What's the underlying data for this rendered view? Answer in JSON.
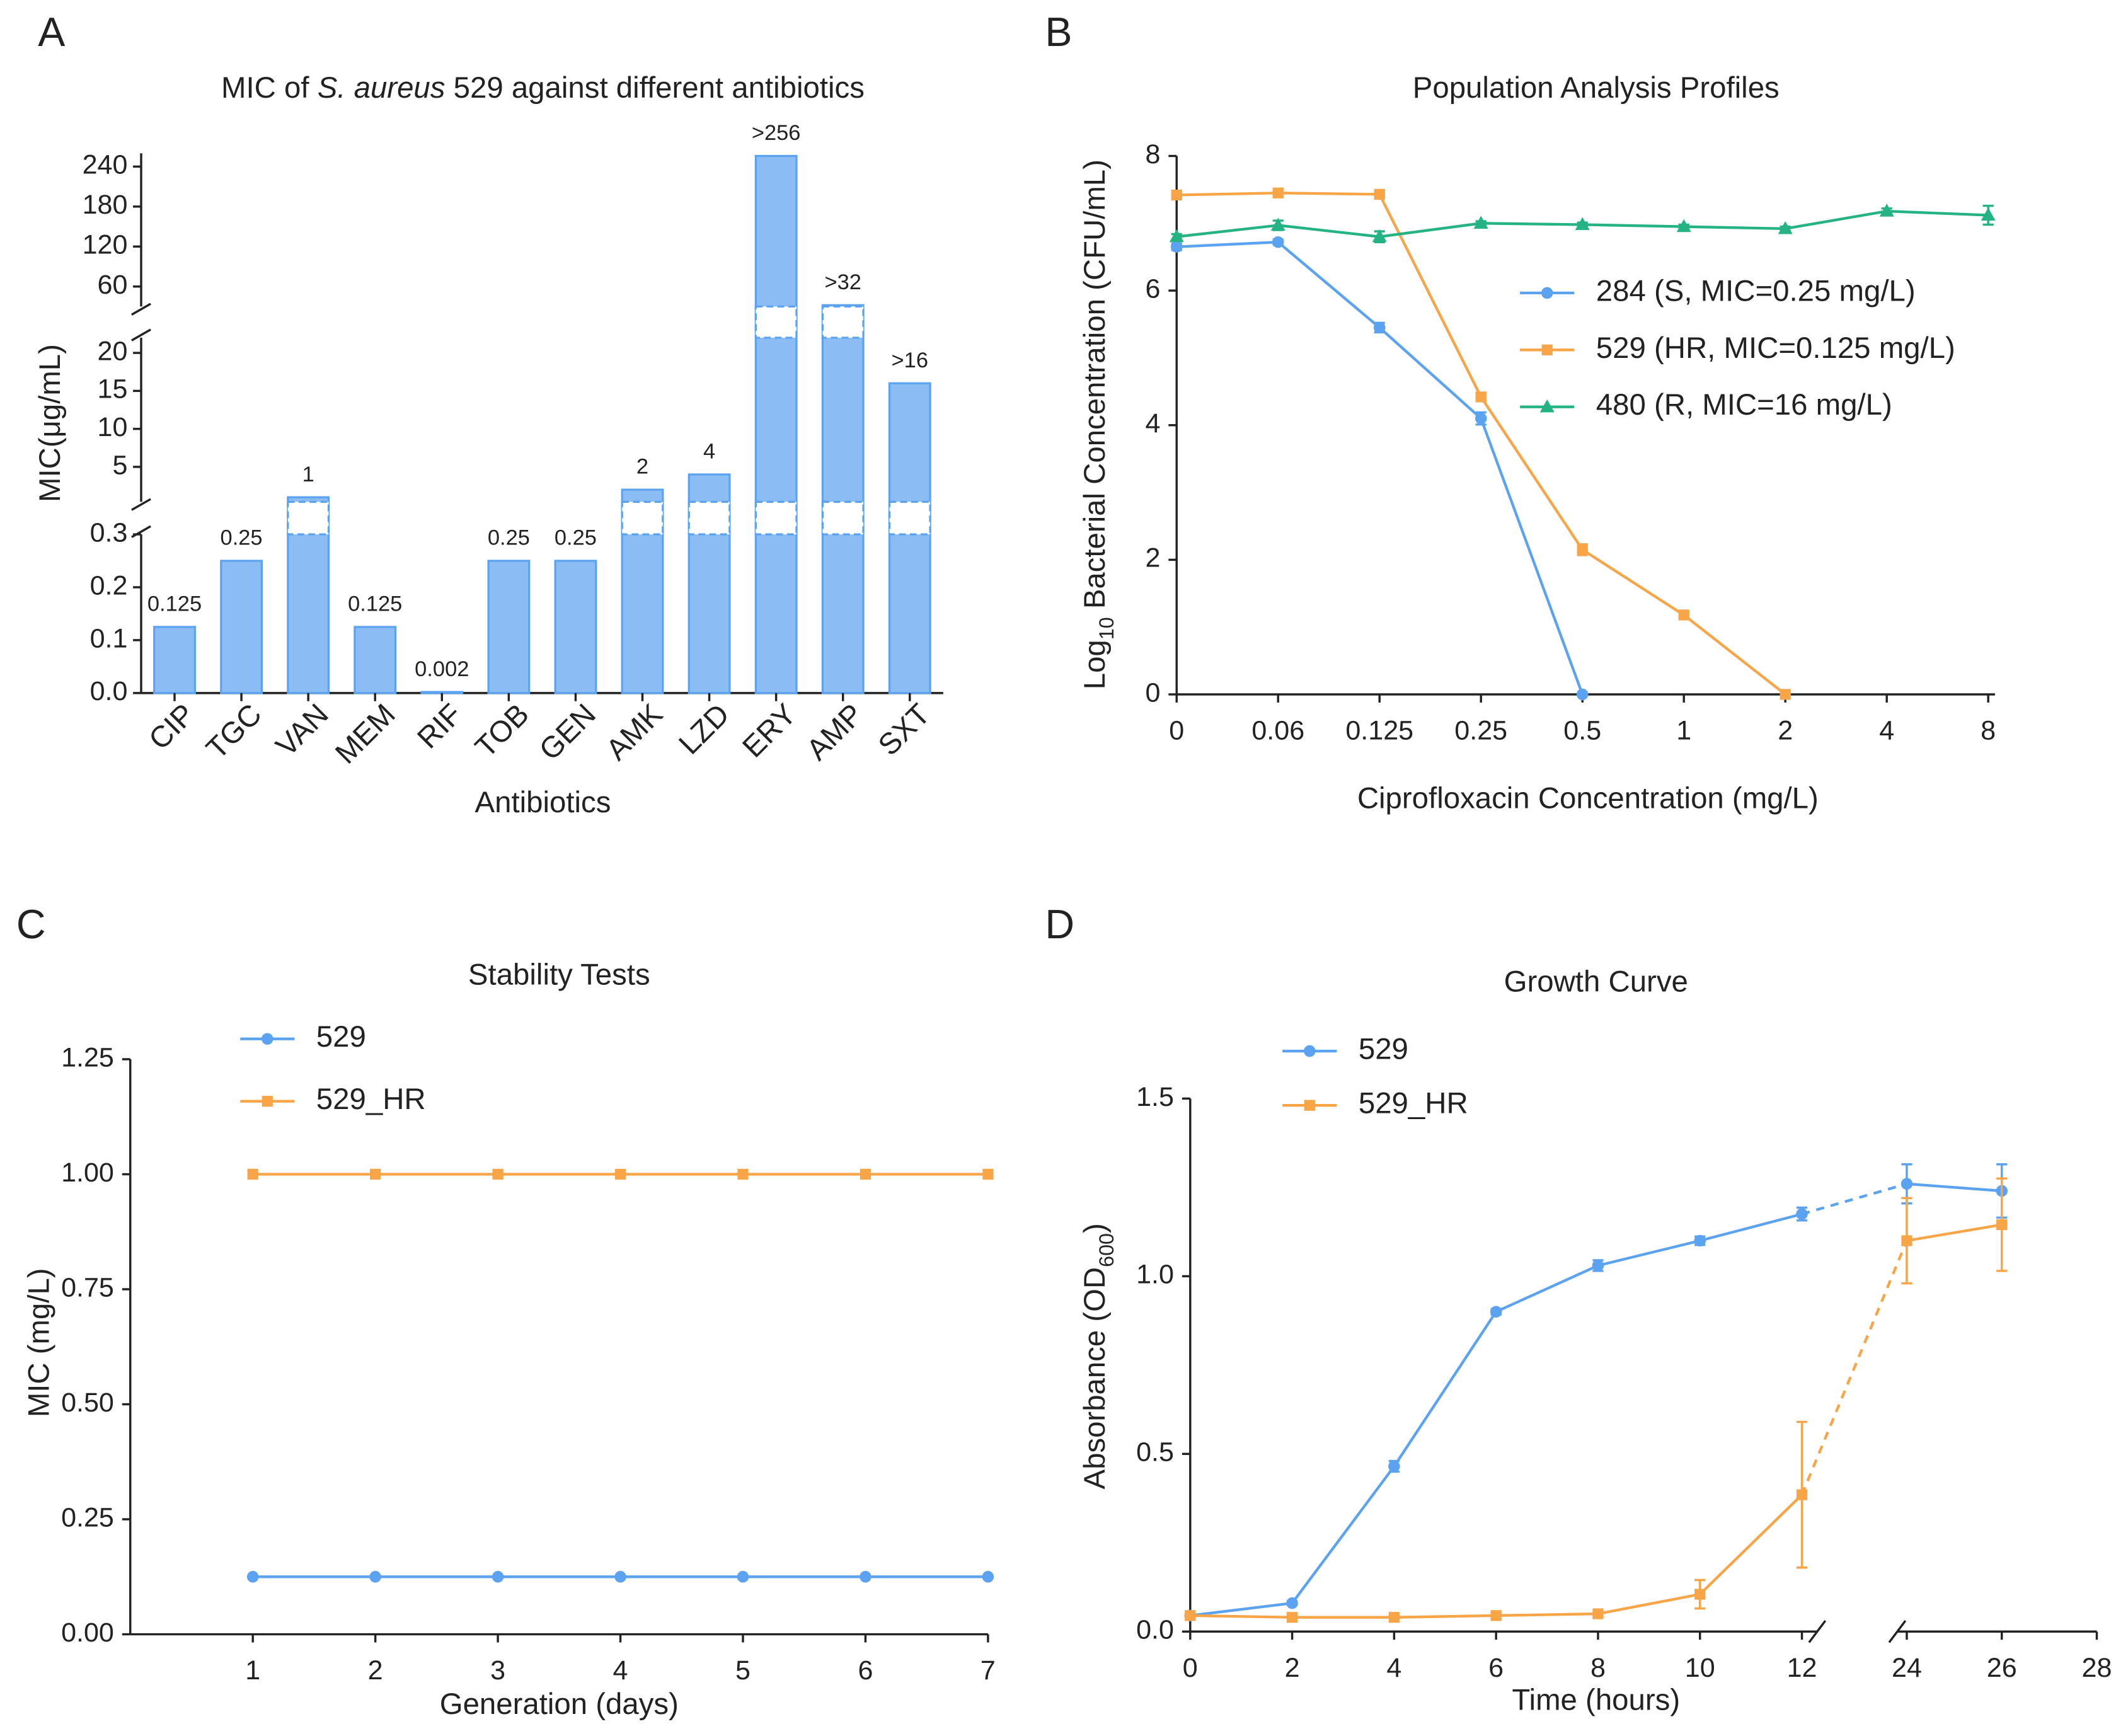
{
  "chart_data": [
    {
      "type": "bar",
      "label": "A",
      "title": [
        {
          "text": "MIC of "
        },
        {
          "text": "S. aureus",
          "style": "italic"
        },
        {
          "text": " 529 against different antibiotics"
        }
      ],
      "xlabel": "Antibiotics",
      "ylabel": [
        {
          "text": "MIC(μg/mL)"
        }
      ],
      "categories": [
        "CIP",
        "TGC",
        "VAN",
        "MEM",
        "RIF",
        "TOB",
        "GEN",
        "AMK",
        "LZD",
        "ERY",
        "AMP",
        "SXT"
      ],
      "values": [
        0.125,
        0.25,
        1,
        0.125,
        0.002,
        0.25,
        0.25,
        2,
        4,
        256,
        32,
        16
      ],
      "value_labels": [
        "0.125",
        "0.25",
        "1",
        "0.125",
        "0.002",
        "0.25",
        "0.25",
        "2",
        "4",
        ">256",
        ">32",
        ">16"
      ],
      "color": "#8cbcf4",
      "edge_color": "#5ba3f0",
      "y_segments": [
        {
          "ylim": [
            0,
            0.3
          ],
          "yticks": [
            {
              "value": 0,
              "label": "0.0"
            },
            0.1,
            0.2,
            0.3
          ]
        },
        {
          "ylim": [
            0.4,
            22
          ],
          "yticks": [
            5,
            10,
            15,
            20
          ]
        },
        {
          "ylim": [
            30,
            260
          ],
          "yticks": [
            60,
            120,
            180,
            240
          ]
        }
      ]
    },
    {
      "type": "line",
      "label": "B",
      "title": [
        {
          "text": "Population Analysis Profiles"
        }
      ],
      "xlabel": "Ciprofloxacin Concentration (mg/L)",
      "ylabel": [
        {
          "text": "Log"
        },
        {
          "text": "10",
          "style": "sub"
        },
        {
          "text": " Bacterial Concentration (CFU/mL)"
        }
      ],
      "categories": [
        "0",
        "0.06",
        "0.125",
        "0.25",
        "0.5",
        "1",
        "2",
        "4",
        "8"
      ],
      "ylim": [
        0,
        8
      ],
      "yticks": [
        0,
        2,
        4,
        6,
        8
      ],
      "series": [
        {
          "name": "284 (S, MIC=0.25 mg/L)",
          "color": "#5ba3f0",
          "marker": "circle",
          "values": [
            6.65,
            6.72,
            5.45,
            4.1,
            0,
            null,
            null,
            null,
            null
          ],
          "errors": [
            0.05,
            0.04,
            0.07,
            0.09,
            0,
            null,
            null,
            null,
            null
          ]
        },
        {
          "name": "529 (HR, MIC=0.125 mg/L)",
          "color": "#f8a548",
          "marker": "square",
          "values": [
            7.42,
            7.45,
            7.43,
            4.42,
            2.15,
            1.18,
            0,
            null,
            null
          ],
          "errors": [
            0.03,
            0.04,
            0.03,
            0.06,
            0.08,
            0.04,
            0,
            null,
            null
          ]
        },
        {
          "name": "480 (R, MIC=16 mg/L)",
          "color": "#25b384",
          "marker": "triangle",
          "values": [
            6.8,
            6.97,
            6.8,
            7.0,
            6.98,
            6.95,
            6.92,
            7.18,
            7.12
          ],
          "errors": [
            0.04,
            0.07,
            0.08,
            0.03,
            0.03,
            0.03,
            0.03,
            0.04,
            0.14
          ]
        }
      ]
    },
    {
      "type": "line",
      "label": "C",
      "title": [
        {
          "text": "Stability Tests"
        }
      ],
      "xlabel": "Generation (days)",
      "ylabel": [
        {
          "text": "MIC (mg/L)"
        }
      ],
      "x": [
        1,
        2,
        3,
        4,
        5,
        6,
        7
      ],
      "xlim": [
        0,
        7
      ],
      "xticks": [
        1,
        2,
        3,
        4,
        5,
        6,
        7
      ],
      "ylim": [
        0,
        1.25
      ],
      "yticks": [
        {
          "value": 0,
          "label": "0.00"
        },
        0.25,
        {
          "value": 0.5,
          "label": "0.50"
        },
        0.75,
        {
          "value": 1,
          "label": "1.00"
        },
        1.25
      ],
      "series": [
        {
          "name": "529",
          "color": "#5ba3f0",
          "marker": "circle",
          "values": [
            0.125,
            0.125,
            0.125,
            0.125,
            0.125,
            0.125,
            0.125
          ]
        },
        {
          "name": "529_HR",
          "color": "#f8a548",
          "marker": "square",
          "values": [
            1,
            1,
            1,
            1,
            1,
            1,
            1
          ]
        }
      ]
    },
    {
      "type": "line",
      "label": "D",
      "title": [
        {
          "text": "Growth Curve"
        }
      ],
      "xlabel": "Time (hours)",
      "ylabel": [
        {
          "text": "Absorbance (OD"
        },
        {
          "text": "600",
          "style": "sub"
        },
        {
          "text": ")"
        }
      ],
      "x": [
        0,
        2,
        4,
        6,
        8,
        10,
        12,
        24,
        26
      ],
      "x_segments": [
        {
          "xlim": [
            0,
            12.3
          ]
        },
        {
          "xlim": [
            23.8,
            28
          ]
        }
      ],
      "xticks": [
        0,
        2,
        4,
        6,
        8,
        10,
        12,
        24,
        26,
        28
      ],
      "ylim": [
        0,
        1.5
      ],
      "yticks": [
        {
          "value": 0,
          "label": "0.0"
        },
        0.5,
        {
          "value": 1,
          "label": "1.0"
        },
        1.5
      ],
      "series": [
        {
          "name": "529",
          "color": "#5ba3f0",
          "marker": "circle",
          "values": [
            0.045,
            0.08,
            0.465,
            0.9,
            1.03,
            1.1,
            1.175,
            1.26,
            1.24
          ],
          "errors": [
            0.005,
            0.005,
            0.015,
            0.008,
            0.015,
            0.012,
            0.018,
            0.055,
            0.075
          ]
        },
        {
          "name": "529_HR",
          "color": "#f8a548",
          "marker": "square",
          "values": [
            0.045,
            0.04,
            0.04,
            0.045,
            0.05,
            0.105,
            0.385,
            1.1,
            1.145
          ],
          "errors": [
            0.005,
            0.004,
            0.004,
            0.005,
            0.005,
            0.04,
            0.205,
            0.12,
            0.13
          ]
        }
      ]
    }
  ]
}
